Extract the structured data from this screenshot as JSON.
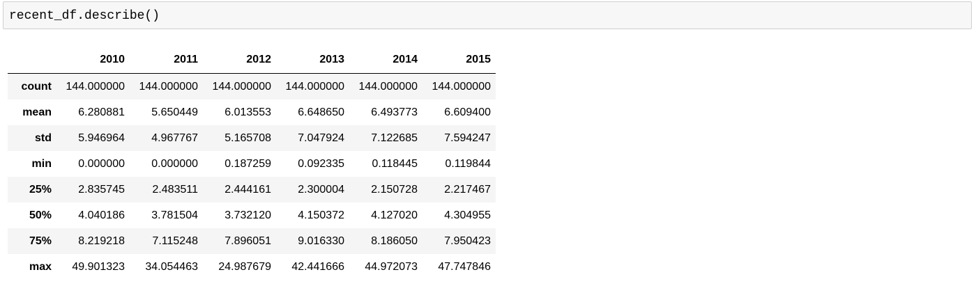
{
  "input_cell": {
    "code": "recent_df.describe()"
  },
  "dataframe": {
    "columns": [
      "2010",
      "2011",
      "2012",
      "2013",
      "2014",
      "2015"
    ],
    "rows": [
      {
        "label": "count",
        "values": [
          "144.000000",
          "144.000000",
          "144.000000",
          "144.000000",
          "144.000000",
          "144.000000"
        ]
      },
      {
        "label": "mean",
        "values": [
          "6.280881",
          "5.650449",
          "6.013553",
          "6.648650",
          "6.493773",
          "6.609400"
        ]
      },
      {
        "label": "std",
        "values": [
          "5.946964",
          "4.967767",
          "5.165708",
          "7.047924",
          "7.122685",
          "7.594247"
        ]
      },
      {
        "label": "min",
        "values": [
          "0.000000",
          "0.000000",
          "0.187259",
          "0.092335",
          "0.118445",
          "0.119844"
        ]
      },
      {
        "label": "25%",
        "values": [
          "2.835745",
          "2.483511",
          "2.444161",
          "2.300004",
          "2.150728",
          "2.217467"
        ]
      },
      {
        "label": "50%",
        "values": [
          "4.040186",
          "3.781504",
          "3.732120",
          "4.150372",
          "4.127020",
          "4.304955"
        ]
      },
      {
        "label": "75%",
        "values": [
          "8.219218",
          "7.115248",
          "7.896051",
          "9.016330",
          "8.186050",
          "7.950423"
        ]
      },
      {
        "label": "max",
        "values": [
          "49.901323",
          "34.054463",
          "24.987679",
          "42.441666",
          "44.972073",
          "47.747846"
        ]
      }
    ]
  },
  "colors": {
    "cell_background": "#f7f7f7",
    "cell_border": "#cfcfcf",
    "striped_row": "#f5f5f5"
  }
}
